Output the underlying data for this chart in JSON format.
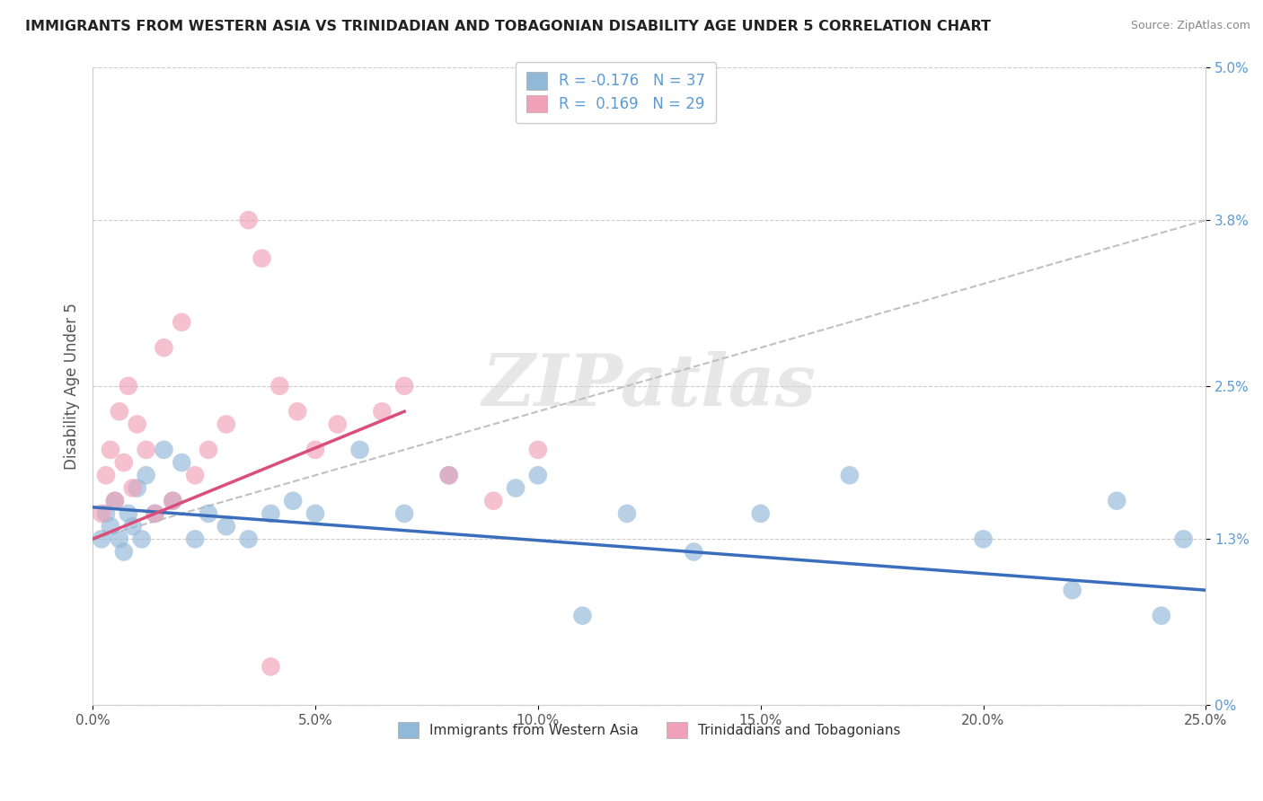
{
  "title": "IMMIGRANTS FROM WESTERN ASIA VS TRINIDADIAN AND TOBAGONIAN DISABILITY AGE UNDER 5 CORRELATION CHART",
  "source": "Source: ZipAtlas.com",
  "ylabel": "Disability Age Under 5",
  "xlim": [
    0.0,
    25.0
  ],
  "ylim": [
    0.0,
    5.0
  ],
  "xticks": [
    0.0,
    5.0,
    10.0,
    15.0,
    20.0,
    25.0
  ],
  "xticklabels": [
    "0.0%",
    "5.0%",
    "10.0%",
    "15.0%",
    "20.0%",
    "25.0%"
  ],
  "yticks": [
    0.0,
    1.3,
    2.5,
    3.8,
    5.0
  ],
  "yticklabels": [
    "0%",
    "1.3%",
    "2.5%",
    "3.8%",
    "5.0%"
  ],
  "grid_color": "#cccccc",
  "watermark": "ZIPatlas",
  "blue_color": "#92b8d8",
  "pink_color": "#f0a0b8",
  "blue_label": "Immigrants from Western Asia",
  "pink_label": "Trinidadians and Tobagonians",
  "blue_R": -0.176,
  "blue_N": 37,
  "pink_R": 0.169,
  "pink_N": 29,
  "blue_scatter_x": [
    0.2,
    0.3,
    0.4,
    0.5,
    0.6,
    0.7,
    0.8,
    0.9,
    1.0,
    1.1,
    1.2,
    1.4,
    1.6,
    1.8,
    2.0,
    2.3,
    2.6,
    3.0,
    3.5,
    4.0,
    4.5,
    5.0,
    6.0,
    7.0,
    8.0,
    9.5,
    10.0,
    11.0,
    12.0,
    13.5,
    15.0,
    17.0,
    20.0,
    22.0,
    23.0,
    24.0,
    24.5
  ],
  "blue_scatter_y": [
    1.3,
    1.5,
    1.4,
    1.6,
    1.3,
    1.2,
    1.5,
    1.4,
    1.7,
    1.3,
    1.8,
    1.5,
    2.0,
    1.6,
    1.9,
    1.3,
    1.5,
    1.4,
    1.3,
    1.5,
    1.6,
    1.5,
    2.0,
    1.5,
    1.8,
    1.7,
    1.8,
    0.7,
    1.5,
    1.2,
    1.5,
    1.8,
    1.3,
    0.9,
    1.6,
    0.7,
    1.3
  ],
  "pink_scatter_x": [
    0.2,
    0.3,
    0.4,
    0.5,
    0.6,
    0.7,
    0.8,
    0.9,
    1.0,
    1.2,
    1.4,
    1.6,
    1.8,
    2.0,
    2.3,
    2.6,
    3.0,
    3.5,
    3.8,
    4.2,
    4.6,
    5.0,
    5.5,
    6.5,
    7.0,
    8.0,
    9.0,
    10.0,
    4.0
  ],
  "pink_scatter_y": [
    1.5,
    1.8,
    2.0,
    1.6,
    2.3,
    1.9,
    2.5,
    1.7,
    2.2,
    2.0,
    1.5,
    2.8,
    1.6,
    3.0,
    1.8,
    2.0,
    2.2,
    3.8,
    3.5,
    2.5,
    2.3,
    2.0,
    2.2,
    2.3,
    2.5,
    1.8,
    1.6,
    2.0,
    0.3
  ],
  "blue_trend_x0": 0.0,
  "blue_trend_x1": 25.0,
  "blue_trend_y0": 1.55,
  "blue_trend_y1": 0.9,
  "pink_trend_x0": 0.0,
  "pink_trend_x1": 7.0,
  "pink_trend_y0": 1.3,
  "pink_trend_y1": 2.3,
  "gray_trend_x0": 0.0,
  "gray_trend_x1": 25.0,
  "gray_trend_y0": 1.3,
  "gray_trend_y1": 3.8,
  "trend_blue_color": "#3a6ebd",
  "trend_pink_color": "#d94f7a",
  "trend_gray_color": "#c0c0c0",
  "tick_label_color": "#5b9bd5",
  "axis_label_color": "#555555",
  "title_color": "#222222",
  "source_color": "#888888"
}
